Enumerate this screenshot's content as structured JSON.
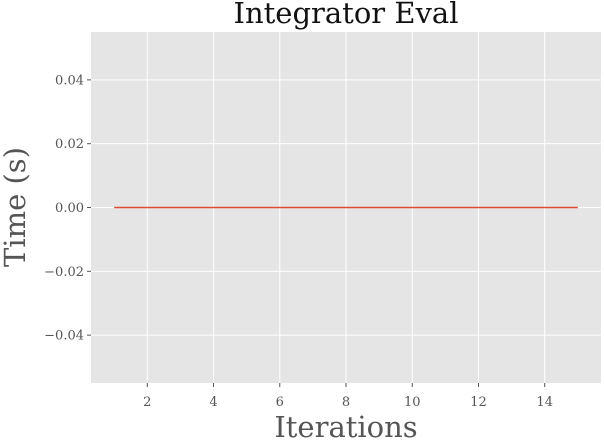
{
  "chart_data": {
    "type": "line",
    "title": "Integrator Eval",
    "xlabel": "Iterations",
    "ylabel": "Time (s)",
    "x": [
      1,
      2,
      3,
      4,
      5,
      6,
      7,
      8,
      9,
      10,
      11,
      12,
      13,
      14,
      15
    ],
    "series": [
      {
        "values": [
          0,
          0,
          0,
          0,
          0,
          0,
          0,
          0,
          0,
          0,
          0,
          0,
          0,
          0,
          0
        ],
        "color": "#E24A33"
      }
    ],
    "xlim": [
      0.3,
      15.7
    ],
    "ylim": [
      -0.055,
      0.055
    ],
    "xticks": [
      2,
      4,
      6,
      8,
      10,
      12,
      14
    ],
    "xtick_labels": [
      "2",
      "4",
      "6",
      "8",
      "10",
      "12",
      "14"
    ],
    "yticks": [
      -0.04,
      -0.02,
      0.0,
      0.02,
      0.04
    ],
    "ytick_labels": [
      "−0.04",
      "−0.02",
      "0.00",
      "0.02",
      "0.04"
    ],
    "grid": true,
    "style": "ggplot",
    "colors": {
      "background": "#E5E5E5",
      "grid": "#FFFFFF",
      "tick": "#555555",
      "title": "#111111"
    }
  }
}
